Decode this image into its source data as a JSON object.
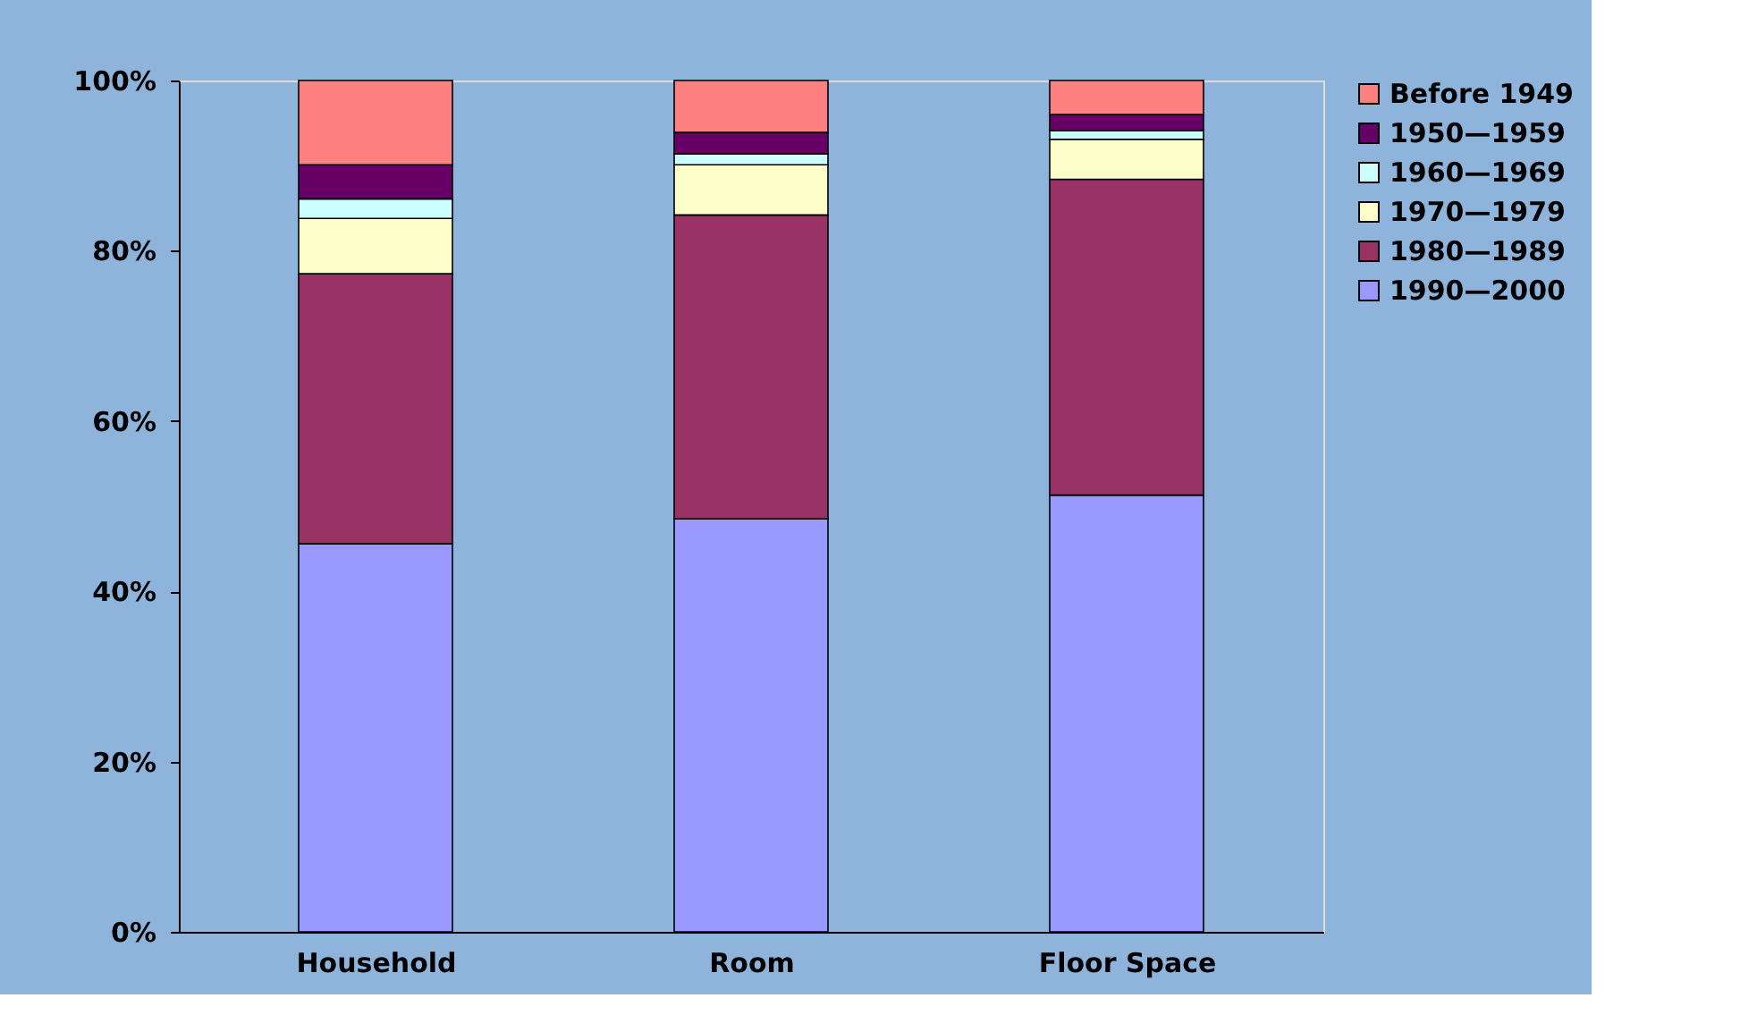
{
  "chart_data": {
    "type": "bar",
    "stacked": true,
    "categories": [
      "Household",
      "Room",
      "Floor Space"
    ],
    "series": [
      {
        "name": "1990—2000",
        "color": "#9999ff",
        "values": [
          45.6,
          48.5,
          51.3
        ]
      },
      {
        "name": "1980—1989",
        "color": "#993366",
        "values": [
          31.7,
          35.7,
          37.1
        ]
      },
      {
        "name": "1970—1979",
        "color": "#ffffcc",
        "values": [
          6.5,
          5.9,
          4.7
        ]
      },
      {
        "name": "1960—1969",
        "color": "#ccffff",
        "values": [
          2.3,
          1.3,
          1.0
        ]
      },
      {
        "name": "1950—1959",
        "color": "#660066",
        "values": [
          4.0,
          2.5,
          1.9
        ]
      },
      {
        "name": "Before 1949",
        "color": "#ff8080",
        "values": [
          9.9,
          6.1,
          4.0
        ]
      }
    ],
    "ylim": [
      0,
      100
    ],
    "yticks": [
      {
        "value": 0,
        "label": "0%"
      },
      {
        "value": 20,
        "label": "20%"
      },
      {
        "value": 40,
        "label": "40%"
      },
      {
        "value": 60,
        "label": "60%"
      },
      {
        "value": 80,
        "label": "80%"
      },
      {
        "value": 100,
        "label": "100%"
      }
    ],
    "grid": false,
    "legend": "right"
  }
}
